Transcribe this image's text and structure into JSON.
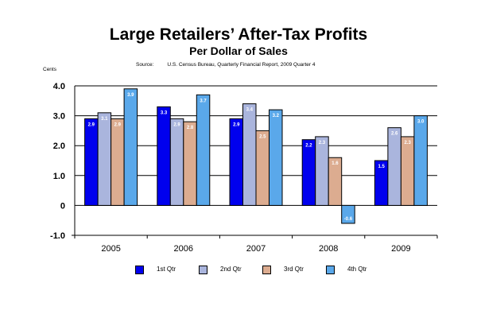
{
  "chart_data": {
    "type": "bar",
    "title": "Large Retailers’ After-Tax Profits",
    "subtitle": "Per Dollar of Sales",
    "source_label": "Source:",
    "source_text": "U.S. Census Bureau, Quarterly Financial Report, 2009 Quarter 4",
    "unit_label": "Cents",
    "categories": [
      "2005",
      "2006",
      "2007",
      "2008",
      "2009"
    ],
    "ylim": [
      -1.0,
      4.0
    ],
    "yticks": [
      "4.0",
      "3.0",
      "2.0",
      "1.0",
      "0",
      "-1.0"
    ],
    "grid": true,
    "legend_position": "bottom",
    "series": [
      {
        "name": "1st Qtr",
        "color": "#0000ee",
        "values": [
          2.9,
          3.3,
          2.9,
          2.2,
          1.5
        ],
        "labels": [
          "2.9",
          "3.3",
          "2.9",
          "2.2",
          "1.5"
        ]
      },
      {
        "name": "2nd Qtr",
        "color": "#aab5dd",
        "values": [
          3.1,
          2.9,
          3.4,
          2.3,
          2.6
        ],
        "labels": [
          "3.1",
          "2.9",
          "3.4",
          "2.3",
          "2.6"
        ]
      },
      {
        "name": "3rd Qtr",
        "color": "#dcac90",
        "values": [
          2.9,
          2.8,
          2.5,
          1.6,
          2.3
        ],
        "labels": [
          "2.9",
          "2.8",
          "2.5",
          "1.6",
          "2.3"
        ]
      },
      {
        "name": "4th Qtr",
        "color": "#5aa8ea",
        "values": [
          3.9,
          3.7,
          3.2,
          -0.6,
          3.0
        ],
        "labels": [
          "3.9",
          "3.7",
          "3.2",
          "-0.6",
          "3.0"
        ]
      }
    ]
  }
}
